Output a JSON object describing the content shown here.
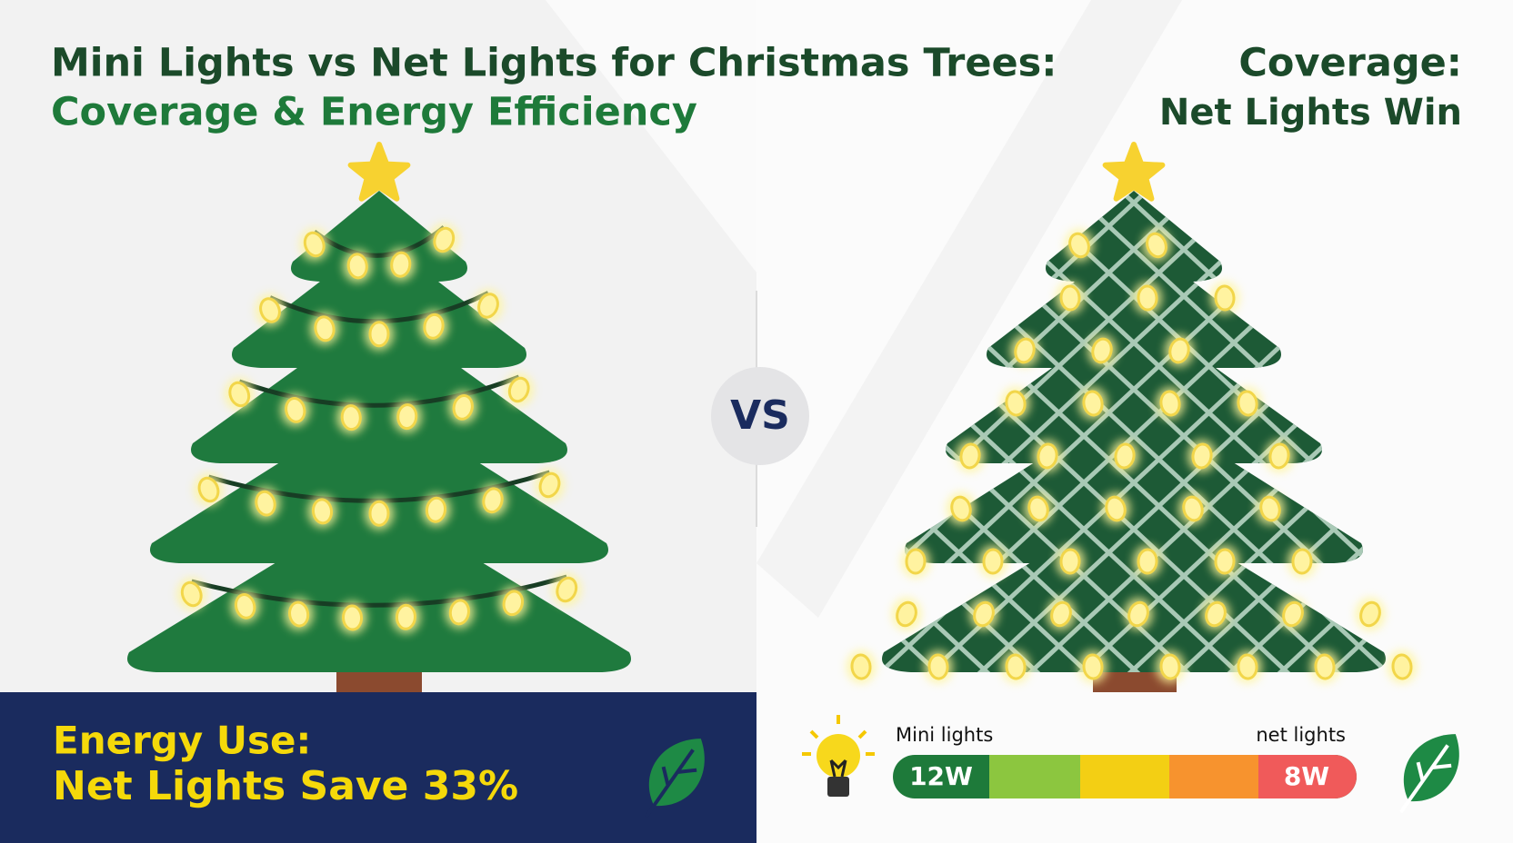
{
  "header": {
    "title_line1": "Mini Lights vs Net Lights for Christmas Trees:",
    "title_line2": "Coverage & Energy Efficiency"
  },
  "coverage": {
    "heading_line1": "Coverage:",
    "heading_line2": "Net Lights Win"
  },
  "vs": "VS",
  "energy": {
    "heading_line1": "Energy Use:",
    "heading_line2": "Net Lights Save 33%"
  },
  "meter": {
    "left_label": "Mini lights",
    "right_label": "net lights",
    "left_value": "12W",
    "right_value": "8W"
  }
}
